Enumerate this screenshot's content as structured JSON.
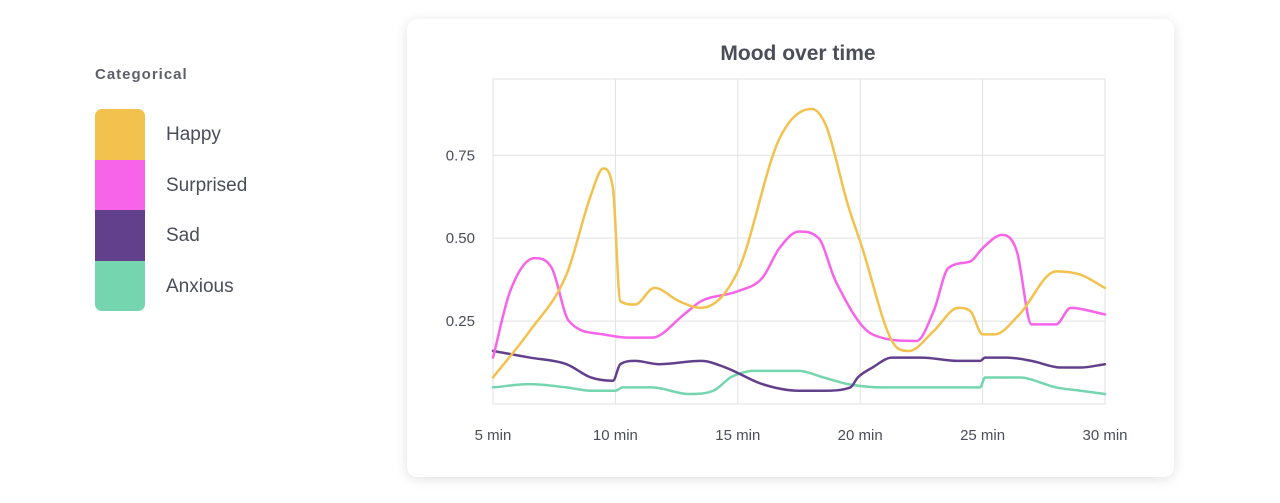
{
  "legend": {
    "heading": "Categorical",
    "items": [
      {
        "label": "Happy",
        "color": "#f2c14e"
      },
      {
        "label": "Surprised",
        "color": "#f763e9"
      },
      {
        "label": "Sad",
        "color": "#62408b"
      },
      {
        "label": "Anxious",
        "color": "#74d5ae"
      }
    ]
  },
  "chart_data": {
    "type": "line",
    "title": "Mood over time",
    "xlabel": "",
    "ylabel": "",
    "x_unit": "min",
    "xlim": [
      5,
      30
    ],
    "ylim": [
      0,
      0.98
    ],
    "x_ticks": [
      5,
      10,
      15,
      20,
      25,
      30
    ],
    "x_tick_labels": [
      "5 min",
      "10 min",
      "15 min",
      "20 min",
      "25 min",
      "30 min"
    ],
    "y_ticks": [
      0.25,
      0.5,
      0.75
    ],
    "y_tick_labels": [
      "0.25",
      "0.50",
      "0.75"
    ],
    "grid": true,
    "series": [
      {
        "name": "Happy",
        "color": "#f2c14e",
        "x": [
          5,
          6.5,
          8,
          9,
          9.5,
          9.9,
          10.2,
          10.8,
          11.6,
          12.6,
          13.5,
          15,
          16.7,
          18,
          18.6,
          19.5,
          20,
          21.5,
          22,
          23,
          24,
          24.5,
          25,
          25.5,
          26.5,
          28,
          29,
          30
        ],
        "y": [
          0.08,
          0.22,
          0.39,
          0.63,
          0.71,
          0.65,
          0.31,
          0.3,
          0.35,
          0.31,
          0.29,
          0.4,
          0.8,
          0.89,
          0.84,
          0.6,
          0.49,
          0.17,
          0.16,
          0.22,
          0.29,
          0.28,
          0.21,
          0.21,
          0.27,
          0.4,
          0.39,
          0.35
        ]
      },
      {
        "name": "Surprised",
        "color": "#f763e9",
        "x": [
          5,
          5.7,
          6.7,
          7.4,
          8.1,
          9.5,
          10.5,
          11.5,
          12.8,
          13.5,
          15,
          16,
          16.7,
          17.5,
          18.3,
          19,
          20.5,
          22.3,
          23,
          23.6,
          24.5,
          25,
          25.8,
          26.4,
          27,
          28,
          28.6,
          30
        ],
        "y": [
          0.14,
          0.34,
          0.44,
          0.41,
          0.25,
          0.21,
          0.2,
          0.2,
          0.27,
          0.31,
          0.34,
          0.38,
          0.47,
          0.52,
          0.5,
          0.37,
          0.21,
          0.19,
          0.28,
          0.41,
          0.43,
          0.47,
          0.51,
          0.46,
          0.24,
          0.24,
          0.29,
          0.27
        ]
      },
      {
        "name": "Sad",
        "color": "#62408b",
        "x": [
          5,
          6.5,
          8,
          9,
          9.9,
          10.2,
          10.8,
          11.8,
          13.5,
          14.5,
          16,
          17.5,
          18.5,
          19.6,
          19.9,
          20.5,
          21.3,
          22.5,
          24,
          24.9,
          25.1,
          26,
          27,
          28.2,
          29,
          30
        ],
        "y": [
          0.16,
          0.14,
          0.12,
          0.08,
          0.07,
          0.12,
          0.13,
          0.12,
          0.13,
          0.11,
          0.06,
          0.04,
          0.04,
          0.05,
          0.08,
          0.11,
          0.14,
          0.14,
          0.13,
          0.13,
          0.14,
          0.14,
          0.13,
          0.11,
          0.11,
          0.12
        ]
      },
      {
        "name": "Anxious",
        "color": "#74d5ae",
        "x": [
          5,
          6.5,
          8,
          9,
          10,
          10.3,
          11.5,
          13,
          14,
          14.7,
          15,
          15.6,
          17.5,
          18.5,
          19.5,
          21,
          22.5,
          24,
          24.9,
          25.1,
          26.5,
          28,
          29,
          30
        ],
        "y": [
          0.05,
          0.06,
          0.05,
          0.04,
          0.04,
          0.05,
          0.05,
          0.03,
          0.04,
          0.08,
          0.09,
          0.1,
          0.1,
          0.08,
          0.06,
          0.05,
          0.05,
          0.05,
          0.05,
          0.08,
          0.08,
          0.05,
          0.04,
          0.03
        ]
      }
    ]
  }
}
